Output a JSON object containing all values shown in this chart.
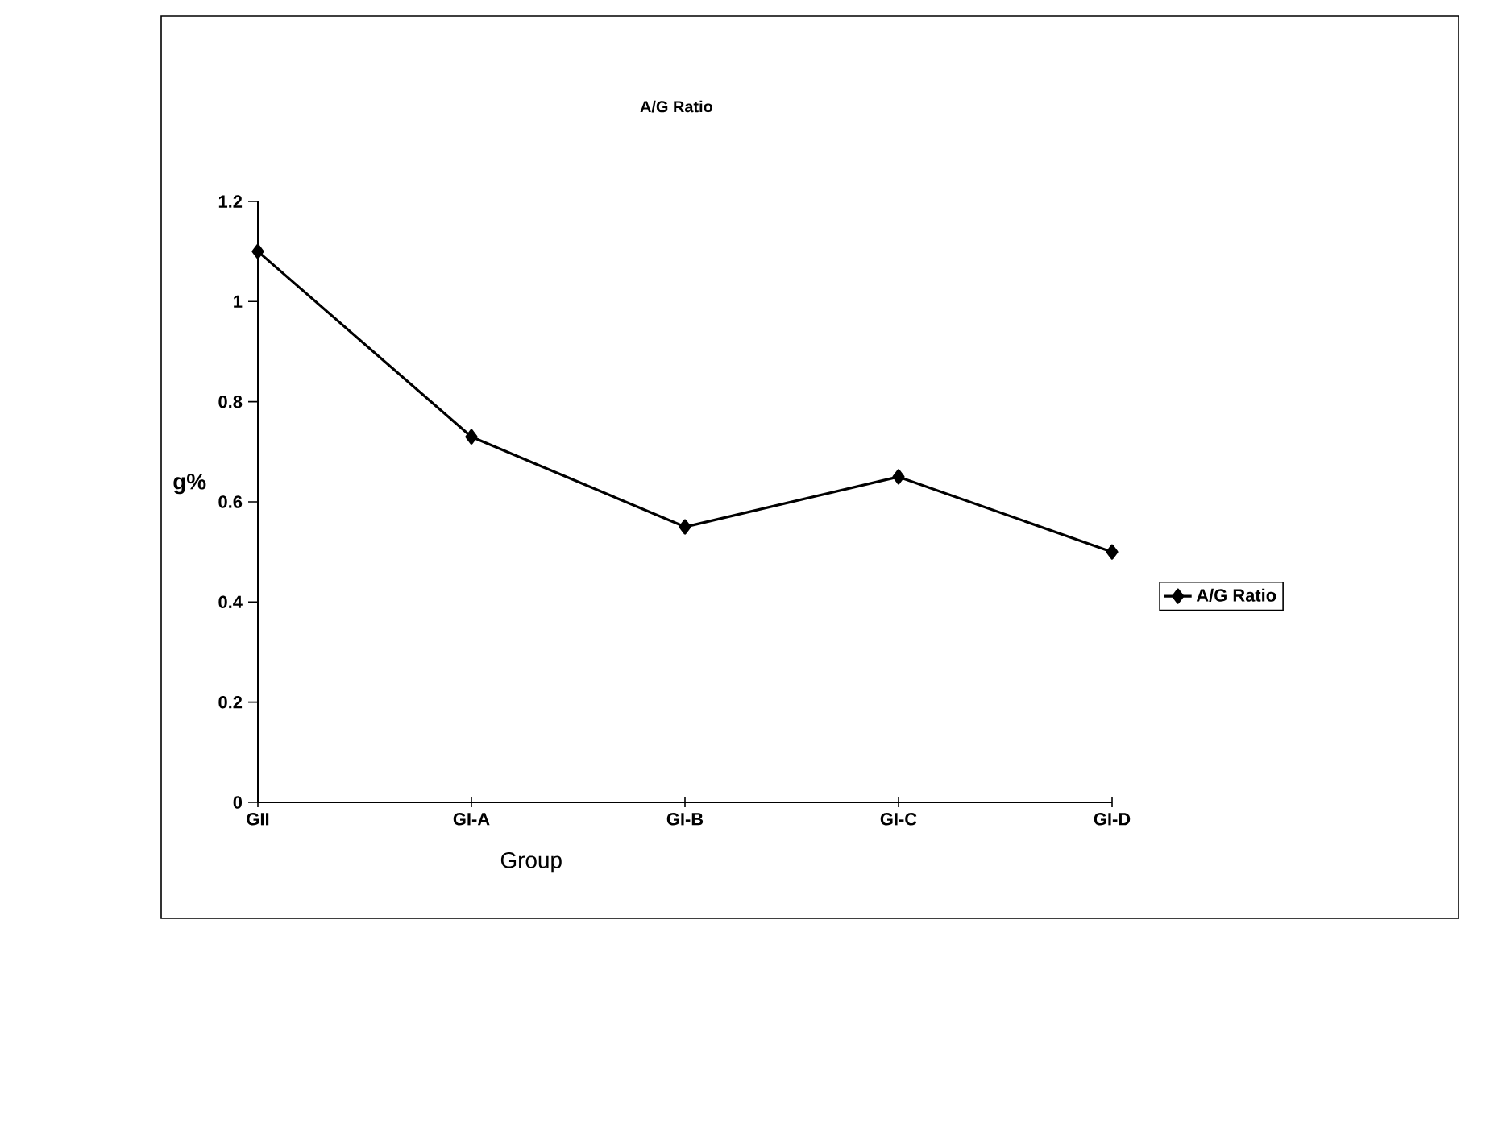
{
  "chart_data": {
    "type": "line",
    "title": "A/G Ratio",
    "xlabel": "Group",
    "ylabel": "g%",
    "categories": [
      "GII",
      "GI-A",
      "GI-B",
      "GI-C",
      "GI-D"
    ],
    "series": [
      {
        "name": "A/G Ratio",
        "color": "#000000",
        "values": [
          1.1,
          0.73,
          0.55,
          0.65,
          0.5
        ]
      }
    ],
    "ylim": [
      0,
      1.2
    ],
    "yticks": [
      0,
      0.2,
      0.4,
      0.6,
      0.8,
      1,
      1.2
    ],
    "legend": "right",
    "marker": "diamond",
    "line_style": "solid",
    "grid": false
  }
}
